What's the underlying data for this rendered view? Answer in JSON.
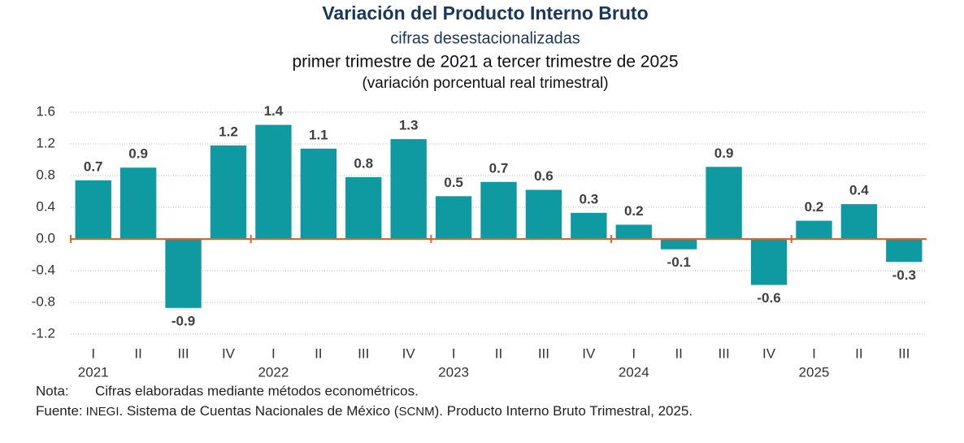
{
  "chart_data": {
    "type": "bar",
    "title": "Variación del Producto Interno Bruto",
    "subtitle": "cifras desestacionalizadas",
    "period": "primer trimestre de 2021 a tercer trimestre de 2025",
    "unit_label": "(variación porcentual real trimestral)",
    "categories": [
      "I",
      "II",
      "III",
      "IV",
      "I",
      "II",
      "III",
      "IV",
      "I",
      "II",
      "III",
      "IV",
      "I",
      "II",
      "III",
      "IV",
      "I",
      "II",
      "III"
    ],
    "x_group_labels": [
      "2021",
      null,
      null,
      null,
      "2022",
      null,
      null,
      null,
      "2023",
      null,
      null,
      null,
      "2024",
      null,
      null,
      null,
      "2025",
      null,
      null
    ],
    "values": [
      0.74,
      0.9,
      -0.87,
      1.18,
      1.44,
      1.14,
      0.78,
      1.26,
      0.54,
      0.72,
      0.62,
      0.33,
      0.18,
      -0.13,
      0.91,
      -0.58,
      0.23,
      0.44,
      -0.29
    ],
    "value_labels": [
      "0.7",
      "0.9",
      "-0.9",
      "1.2",
      "1.4",
      "1.1",
      "0.8",
      "1.3",
      "0.5",
      "0.7",
      "0.6",
      "0.3",
      "0.2",
      "-0.1",
      "0.9",
      "-0.6",
      "0.2",
      "0.4",
      "-0.3"
    ],
    "color": "#0e9aa0",
    "zero_line_color": "#e0622a",
    "ylim": [
      -1.2,
      1.6
    ],
    "yticks": [
      -1.2,
      -0.8,
      -0.4,
      {
        "value": 0,
        "label": "0.0"
      },
      0.4,
      0.8,
      1.2,
      1.6
    ],
    "grid": true
  },
  "notes": {
    "label": "Nota:",
    "text": "Cifras elaboradas mediante métodos econométricos."
  },
  "source": {
    "label": "Fuente:",
    "parts": [
      "INEGI",
      ". Sistema de Cuentas Nacionales de México (",
      "SCNM",
      "). Producto Interno Bruto Trimestral, 2025."
    ]
  }
}
